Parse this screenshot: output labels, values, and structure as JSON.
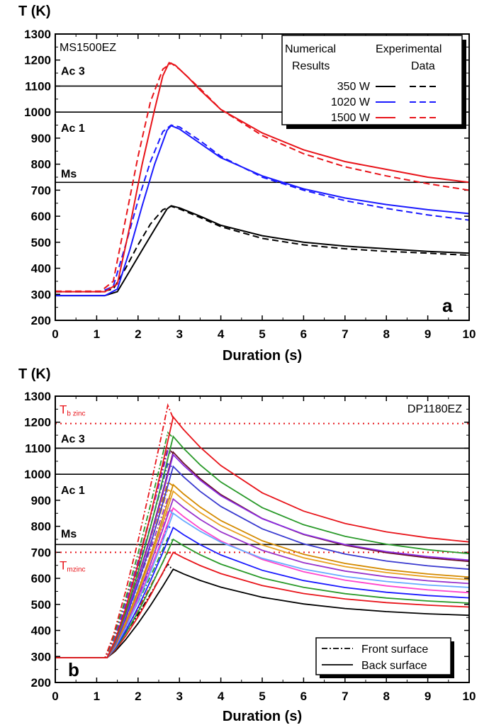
{
  "chart_data": [
    {
      "type": "line",
      "panel_letter": "a",
      "material": "MS1500EZ",
      "ylabel": "T (K)",
      "xlabel": "Duration (s)",
      "xlim": [
        0,
        10
      ],
      "ylim": [
        200,
        1300
      ],
      "xticks": [
        "0",
        "1",
        "2",
        "3",
        "4",
        "5",
        "6",
        "7",
        "8",
        "9",
        "10"
      ],
      "yticks": [
        "200",
        "300",
        "400",
        "500",
        "600",
        "700",
        "800",
        "900",
        "1000",
        "1100",
        "1200",
        "1300"
      ],
      "reference_lines": [
        {
          "label": "Ac 3",
          "y": 1100
        },
        {
          "label": "Ac 1",
          "y": 1000
        },
        {
          "label": "Ms",
          "y": 730
        }
      ],
      "legend": {
        "position": "top-right",
        "col1": [
          "Numerical",
          "Results"
        ],
        "col2": [
          "Experimental",
          "Data"
        ],
        "entries": [
          "350 W",
          "1020 W",
          "1500 W"
        ]
      },
      "series": [
        {
          "name": "350 W",
          "kind": "numerical",
          "color": "#000000",
          "dash": false,
          "x": [
            0,
            1.2,
            1.5,
            1.8,
            2.1,
            2.4,
            2.7,
            2.8,
            3,
            3.5,
            4,
            5,
            6,
            7,
            8,
            9,
            10
          ],
          "y": [
            295,
            295,
            310,
            390,
            470,
            550,
            628,
            640,
            632,
            600,
            565,
            525,
            500,
            485,
            475,
            465,
            458
          ]
        },
        {
          "name": "350 W",
          "kind": "experimental",
          "color": "#000000",
          "dash": true,
          "x": [
            0,
            1.1,
            1.4,
            1.7,
            2.0,
            2.3,
            2.6,
            2.8,
            3,
            3.5,
            4,
            5,
            6,
            7,
            8,
            9,
            10
          ],
          "y": [
            310,
            310,
            320,
            400,
            490,
            570,
            625,
            638,
            628,
            595,
            560,
            515,
            490,
            475,
            465,
            458,
            450
          ]
        },
        {
          "name": "1020 W",
          "kind": "numerical",
          "color": "#1a1aff",
          "dash": false,
          "x": [
            0,
            1.2,
            1.5,
            1.8,
            2.1,
            2.4,
            2.7,
            2.8,
            3,
            3.5,
            4,
            5,
            6,
            7,
            8,
            9,
            10
          ],
          "y": [
            295,
            295,
            320,
            470,
            640,
            800,
            930,
            948,
            935,
            880,
            825,
            755,
            705,
            670,
            645,
            625,
            610
          ]
        },
        {
          "name": "1020 W",
          "kind": "experimental",
          "color": "#1a1aff",
          "dash": true,
          "x": [
            0,
            1.1,
            1.4,
            1.7,
            2.0,
            2.3,
            2.6,
            2.8,
            3,
            3.5,
            4,
            5,
            6,
            7,
            8,
            9,
            10
          ],
          "y": [
            310,
            310,
            330,
            490,
            660,
            810,
            925,
            950,
            943,
            890,
            830,
            750,
            700,
            660,
            630,
            605,
            585
          ]
        },
        {
          "name": "1500 W",
          "kind": "numerical",
          "color": "#e8141a",
          "dash": false,
          "x": [
            0,
            1.2,
            1.5,
            1.8,
            2.1,
            2.4,
            2.6,
            2.75,
            2.9,
            3.2,
            3.5,
            4,
            5,
            6,
            7,
            8,
            9,
            10
          ],
          "y": [
            310,
            310,
            340,
            560,
            800,
            1010,
            1140,
            1190,
            1180,
            1135,
            1085,
            1010,
            920,
            855,
            810,
            780,
            750,
            730
          ]
        },
        {
          "name": "1500 W",
          "kind": "experimental",
          "color": "#e8141a",
          "dash": true,
          "x": [
            0,
            1.1,
            1.4,
            1.7,
            2.0,
            2.3,
            2.6,
            2.8,
            3,
            3.5,
            4,
            5,
            6,
            7,
            8,
            9,
            10
          ],
          "y": [
            312,
            312,
            350,
            590,
            830,
            1040,
            1165,
            1188,
            1165,
            1090,
            1010,
            910,
            840,
            790,
            755,
            725,
            700
          ]
        }
      ]
    },
    {
      "type": "line",
      "panel_letter": "b",
      "material": "DP1180EZ",
      "ylabel": "T (K)",
      "xlabel": "Duration (s)",
      "xlim": [
        0,
        10
      ],
      "ylim": [
        200,
        1300
      ],
      "xticks": [
        "0",
        "1",
        "2",
        "3",
        "4",
        "5",
        "6",
        "7",
        "8",
        "9",
        "10"
      ],
      "yticks": [
        "200",
        "300",
        "400",
        "500",
        "600",
        "700",
        "800",
        "900",
        "1000",
        "1100",
        "1200",
        "1300"
      ],
      "reference_lines": [
        {
          "label": "Ac 3",
          "y": 1100,
          "style": "solid"
        },
        {
          "label": "Ac 1",
          "y": 1000,
          "style": "solid"
        },
        {
          "label": "Ms",
          "y": 730,
          "style": "solid"
        },
        {
          "label_main": "T",
          "label_sub": "b zinc",
          "y": 1195,
          "style": "dotted"
        },
        {
          "label_main": "T",
          "label_sub": "mzinc",
          "y": 700,
          "style": "dotted"
        }
      ],
      "legend": {
        "position": "bottom-right",
        "entries": [
          "Front surface",
          "Back surface"
        ]
      },
      "peak_curves": [
        {
          "color": "#000000",
          "front_peak": 655,
          "back_peak": 635,
          "end": 458
        },
        {
          "color": "#e8141a",
          "front_peak": 700,
          "back_peak": 700,
          "end": 490
        },
        {
          "color": "#2a9a2a",
          "front_peak": 755,
          "back_peak": 750,
          "end": 505
        },
        {
          "color": "#1a1aff",
          "front_peak": 800,
          "back_peak": 795,
          "end": 525
        },
        {
          "color": "#ff44cc",
          "front_peak": 855,
          "back_peak": 870,
          "end": 545
        },
        {
          "color": "#66aaff",
          "front_peak": 870,
          "back_peak": 850,
          "end": 565
        },
        {
          "color": "#9933cc",
          "front_peak": 910,
          "back_peak": 905,
          "end": 580
        },
        {
          "color": "#e8a020",
          "front_peak": 940,
          "back_peak": 935,
          "end": 595
        },
        {
          "color": "#d48a00",
          "front_peak": 970,
          "back_peak": 960,
          "end": 605
        },
        {
          "color": "#3a3ad0",
          "front_peak": 1040,
          "back_peak": 1030,
          "end": 635
        },
        {
          "color": "#6b0f2a",
          "front_peak": 1100,
          "back_peak": 1085,
          "end": 665
        },
        {
          "color": "#8a2be2",
          "front_peak": 1090,
          "back_peak": 1075,
          "end": 670
        },
        {
          "color": "#2a9a2a",
          "front_peak": 1160,
          "back_peak": 1145,
          "end": 695
        },
        {
          "color": "#e8141a",
          "front_peak": 1265,
          "back_peak": 1220,
          "end": 740
        }
      ]
    }
  ]
}
